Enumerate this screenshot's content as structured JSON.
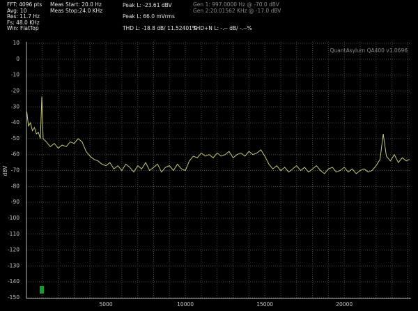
{
  "header": {
    "fft": [
      "FFT: 4096 pts",
      "Avg: 10",
      "Res: 11.7 Hz",
      "Fs: 48.0 KHz",
      "Win: FlatTop"
    ],
    "meas": [
      "Meas Start: 20.0 Hz",
      "Meas Stop:24.0 KHz"
    ],
    "peak": [
      "Peak L: -23.61 dBV",
      "Peak L: 66.0 mVrms"
    ],
    "gen": [
      "Gen 1: 997.0000 Hz @ -70.0  dBV",
      "Gen 2:20.01562 KHz @ -17.0  dBV"
    ],
    "thd": "THD L: -18.8 dB/ 11.52401%",
    "thdn": "THD+N L: -.-- dB/ -.--%"
  },
  "chart_data": {
    "type": "line",
    "watermark": "QuantAsylum QA400 v1.0696",
    "y_label": "dBV",
    "color": "#c8c878",
    "grid": true,
    "xlim": [
      0,
      24200
    ],
    "ylim": [
      -150,
      10
    ],
    "xticks": [
      5000,
      10000,
      15000,
      20000
    ],
    "xminorticks": [
      1000,
      2000,
      3000,
      4000,
      6000,
      7000,
      8000,
      9000,
      11000,
      12000,
      13000,
      14000,
      16000,
      17000,
      18000,
      19000,
      21000,
      22000,
      23000,
      24000
    ],
    "yticks": [
      10,
      0,
      -10,
      -20,
      -30,
      -40,
      -50,
      -60,
      -70,
      -80,
      -90,
      -100,
      -110,
      -120,
      -130,
      -140,
      -150
    ],
    "x": [
      20,
      125,
      250,
      375,
      500,
      625,
      750,
      875,
      965,
      1050,
      1250,
      1500,
      1750,
      2000,
      2250,
      2500,
      2750,
      3000,
      3250,
      3500,
      3750,
      4000,
      4250,
      4500,
      4750,
      5000,
      5250,
      5500,
      5750,
      6000,
      6250,
      6500,
      6750,
      7000,
      7250,
      7500,
      7750,
      8000,
      8250,
      8500,
      8750,
      9000,
      9250,
      9500,
      9750,
      10000,
      10250,
      10500,
      10750,
      11000,
      11250,
      11500,
      11750,
      12000,
      12250,
      12500,
      12750,
      13000,
      13250,
      13500,
      13750,
      14000,
      14250,
      14500,
      14750,
      15000,
      15250,
      15500,
      15750,
      16000,
      16250,
      16500,
      16750,
      17000,
      17250,
      17500,
      17750,
      18000,
      18250,
      18500,
      18750,
      19000,
      19250,
      19500,
      19750,
      20000,
      20250,
      20500,
      20750,
      21000,
      21250,
      21500,
      21750,
      22000,
      22250,
      22450,
      22650,
      22900,
      23150,
      23400,
      23650,
      23900,
      24100
    ],
    "values": [
      -33,
      -42,
      -40,
      -45,
      -43,
      -47,
      -46,
      -50,
      -23.6,
      -50,
      -52,
      -55,
      -53,
      -56,
      -54,
      -55,
      -52,
      -53,
      -50,
      -52,
      -58,
      -61,
      -63,
      -64,
      -66,
      -67,
      -65,
      -69,
      -67,
      -70,
      -66,
      -68,
      -71,
      -67,
      -69,
      -65,
      -70,
      -68,
      -66,
      -71,
      -68,
      -67,
      -70,
      -66,
      -69,
      -70,
      -64,
      -61,
      -62,
      -59,
      -61,
      -60,
      -62,
      -59,
      -61,
      -60,
      -58,
      -62,
      -60,
      -59,
      -61,
      -58,
      -60,
      -59,
      -57,
      -61,
      -66,
      -69,
      -67,
      -70,
      -68,
      -71,
      -69,
      -67,
      -70,
      -68,
      -71,
      -69,
      -67,
      -70,
      -72,
      -69,
      -68,
      -71,
      -70,
      -68,
      -71,
      -69,
      -72,
      -70,
      -69,
      -71,
      -70,
      -67,
      -63,
      -47,
      -61,
      -64,
      -60,
      -65,
      -62,
      -64,
      -63
    ]
  }
}
